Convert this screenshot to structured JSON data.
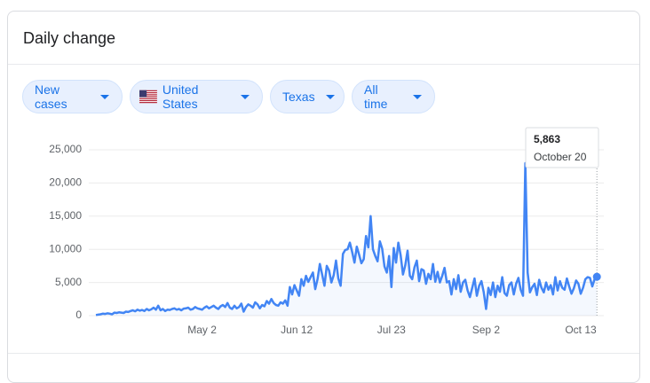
{
  "header": {
    "title": "Daily change"
  },
  "filters": [
    "New cases",
    "United States",
    "Texas",
    "All time"
  ],
  "chart_data": {
    "type": "line",
    "categories": [
      null,
      null,
      null,
      null,
      null,
      null,
      null,
      null,
      null,
      null,
      null,
      null,
      null,
      null,
      null,
      null,
      null,
      null,
      null,
      null,
      null,
      null,
      null,
      null,
      null,
      null,
      null,
      null,
      null,
      null,
      null,
      null,
      null,
      null,
      null,
      null,
      null,
      null,
      null,
      null,
      null,
      null,
      null,
      null,
      null,
      null,
      "May 2",
      null,
      null,
      null,
      null,
      null,
      null,
      null,
      null,
      null,
      null,
      null,
      null,
      null,
      null,
      null,
      null,
      null,
      null,
      null,
      null,
      null,
      null,
      null,
      null,
      null,
      null,
      null,
      null,
      null,
      null,
      null,
      null,
      null,
      null,
      null,
      null,
      null,
      null,
      null,
      null,
      "Jun 12",
      null,
      null,
      null,
      null,
      null,
      null,
      null,
      null,
      null,
      null,
      null,
      null,
      null,
      null,
      null,
      null,
      null,
      null,
      null,
      null,
      null,
      null,
      null,
      null,
      null,
      null,
      null,
      null,
      null,
      null,
      null,
      null,
      null,
      null,
      null,
      null,
      null,
      null,
      null,
      null,
      "Jul 23",
      null,
      null,
      null,
      null,
      null,
      null,
      null,
      null,
      null,
      null,
      null,
      null,
      null,
      null,
      null,
      null,
      null,
      null,
      null,
      null,
      null,
      null,
      null,
      null,
      null,
      null,
      null,
      null,
      null,
      null,
      null,
      null,
      null,
      null,
      null,
      null,
      null,
      null,
      null,
      null,
      "Sep 2",
      null,
      null,
      null,
      null,
      null,
      null,
      null,
      null,
      null,
      null,
      null,
      null,
      null,
      null,
      null,
      null,
      null,
      null,
      null,
      null,
      null,
      null,
      null,
      null,
      null,
      null,
      null,
      null,
      null,
      null,
      null,
      null,
      null,
      null,
      null,
      null,
      null,
      null,
      null,
      null,
      "Oct 13",
      null,
      null,
      null,
      null,
      null,
      null,
      null
    ],
    "values": [
      100,
      150,
      200,
      300,
      250,
      350,
      300,
      200,
      450,
      400,
      500,
      450,
      400,
      600,
      550,
      700,
      800,
      650,
      900,
      750,
      850,
      700,
      1000,
      800,
      950,
      1200,
      900,
      1500,
      800,
      1000,
      700,
      900,
      850,
      1000,
      1100,
      900,
      1000,
      800,
      1050,
      1100,
      1200,
      900,
      1000,
      1300,
      1100,
      1000,
      900,
      1200,
      1400,
      1100,
      1300,
      1500,
      1200,
      1000,
      1400,
      1600,
      1300,
      1900,
      1200,
      1000,
      1500,
      1100,
      1300,
      1800,
      600,
      1300,
      1700,
      1500,
      1200,
      2000,
      1700,
      1100,
      1600,
      1400,
      2200,
      1800,
      2500,
      1900,
      1600,
      1500,
      2000,
      1800,
      2300,
      1500,
      4300,
      3200,
      4600,
      3800,
      3000,
      5500,
      4500,
      6000,
      5100,
      5800,
      6500,
      4000,
      5500,
      7800,
      6200,
      4500,
      7500,
      6800,
      5000,
      6100,
      8300,
      5600,
      4500,
      9300,
      9900,
      10000,
      11000,
      9600,
      8000,
      10400,
      9200,
      7900,
      8500,
      12000,
      10300,
      15000,
      10000,
      9000,
      8200,
      11200,
      10100,
      7400,
      6500,
      9000,
      4300,
      10200,
      8000,
      11000,
      9100,
      6200,
      7600,
      9800,
      6000,
      5500,
      7300,
      8300,
      5200,
      7000,
      6800,
      4800,
      6300,
      5500,
      7800,
      5100,
      6600,
      5000,
      6000,
      7200,
      5000,
      5200,
      3200,
      5500,
      4000,
      6100,
      3600,
      5000,
      5400,
      3800,
      2800,
      4200,
      5600,
      3000,
      4500,
      5200,
      3500,
      1000,
      4200,
      3100,
      5000,
      2800,
      4500,
      3600,
      5800,
      3400,
      3000,
      4600,
      5000,
      3200,
      4800,
      5700,
      3900,
      3000,
      23000,
      6500,
      3500,
      4300,
      4800,
      3100,
      5400,
      4200,
      3500,
      5000,
      3900,
      4600,
      3200,
      5800,
      3800,
      5200,
      4200,
      3900,
      5600,
      4400,
      3300,
      4100,
      5300,
      4800,
      3300,
      4200,
      5500,
      5800,
      5700,
      4400,
      5500,
      5863
    ],
    "color": "#4285f4",
    "ylim": [
      0,
      25000
    ],
    "yticks": [
      0,
      {
        "value": 5000,
        "label": "5,000"
      },
      {
        "value": 10000,
        "label": "10,000"
      },
      {
        "value": 15000,
        "label": "15,000"
      },
      {
        "value": 20000,
        "label": "20,000"
      },
      {
        "value": 25000,
        "label": "25,000"
      }
    ],
    "grid": true,
    "tooltip": {
      "label": "5,863",
      "date": "October 20"
    }
  }
}
